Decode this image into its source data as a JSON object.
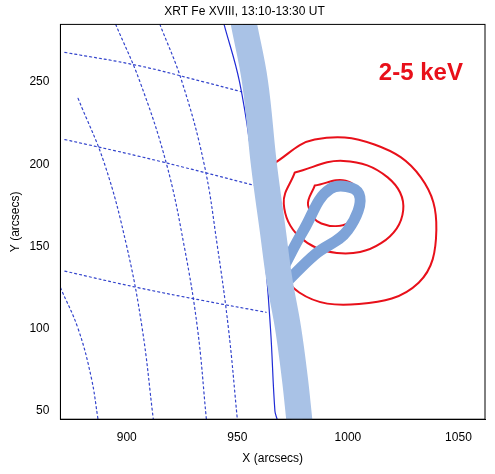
{
  "chart_data": {
    "type": "scatter",
    "title": "XRT Fe XVIII, 13:10-13:30 UT",
    "x_label": "X (arcsecs)",
    "y_label": "Y (arcsecs)",
    "xlim": [
      870,
      1062
    ],
    "ylim": [
      45,
      285
    ],
    "xticks": [
      900,
      950,
      1000,
      1050
    ],
    "yticks": [
      50,
      100,
      150,
      200,
      250
    ],
    "grid": false,
    "annotations": [
      {
        "text": "2-5 keV",
        "x": 1033,
        "y": 255,
        "color": "#e8101a"
      }
    ],
    "series": [
      {
        "type": "band",
        "color": "#a9c2e6",
        "line_style": "solid",
        "marker": "none",
        "values": [
          [
            953,
            285
          ],
          [
            958,
            250
          ],
          [
            962,
            200
          ],
          [
            966,
            160
          ],
          [
            969,
            130
          ],
          [
            973,
            100
          ],
          [
            976,
            70
          ],
          [
            978,
            45
          ]
        ]
      },
      {
        "type": "band",
        "color": "#1d4f9e",
        "line_style": "solid",
        "marker": "none",
        "values": [
          [
            955,
            285
          ],
          [
            960,
            250
          ],
          [
            964,
            200
          ],
          [
            967,
            160
          ],
          [
            969,
            130
          ],
          [
            972,
            100
          ],
          [
            975,
            70
          ],
          [
            977,
            45
          ]
        ]
      },
      {
        "type": "band",
        "color": "#7ea3d8",
        "line_style": "solid",
        "marker": "none",
        "values": [
          [
            970,
            135
          ],
          [
            980,
            160
          ],
          [
            992,
            185
          ],
          [
            1005,
            182
          ],
          [
            1000,
            160
          ],
          [
            985,
            145
          ],
          [
            972,
            128
          ]
        ]
      },
      {
        "type": "line",
        "color": "#1f2bd6",
        "line_style": "solid",
        "marker": "none",
        "values": [
          [
            944,
            285
          ],
          [
            951,
            250
          ],
          [
            957,
            200
          ],
          [
            962,
            150
          ],
          [
            965,
            100
          ],
          [
            967,
            50
          ],
          [
            968,
            45
          ]
        ]
      },
      {
        "type": "line",
        "color": "#3344cc",
        "line_style": "dotted",
        "marker": "none",
        "values": [
          [
            915,
            285
          ],
          [
            925,
            250
          ],
          [
            935,
            200
          ],
          [
            941,
            150
          ],
          [
            946,
            100
          ],
          [
            950,
            45
          ]
        ]
      },
      {
        "type": "line",
        "color": "#3344cc",
        "line_style": "dotted",
        "marker": "none",
        "values": [
          [
            895,
            285
          ],
          [
            906,
            250
          ],
          [
            918,
            200
          ],
          [
            926,
            150
          ],
          [
            932,
            100
          ],
          [
            936,
            45
          ]
        ]
      },
      {
        "type": "line",
        "color": "#3344cc",
        "line_style": "dotted",
        "marker": "none",
        "values": [
          [
            878,
            240
          ],
          [
            890,
            200
          ],
          [
            900,
            150
          ],
          [
            907,
            100
          ],
          [
            912,
            45
          ]
        ]
      },
      {
        "type": "line",
        "color": "#3344cc",
        "line_style": "dotted",
        "marker": "none",
        "values": [
          [
            870,
            125
          ],
          [
            878,
            100
          ],
          [
            884,
            70
          ],
          [
            887,
            45
          ]
        ]
      },
      {
        "type": "line",
        "color": "#3344cc",
        "line_style": "dotted",
        "marker": "none",
        "values": [
          [
            872,
            268
          ],
          [
            905,
            260
          ],
          [
            935,
            250
          ],
          [
            952,
            244
          ]
        ]
      },
      {
        "type": "line",
        "color": "#3344cc",
        "line_style": "dotted",
        "marker": "none",
        "values": [
          [
            872,
            215
          ],
          [
            905,
            205
          ],
          [
            935,
            195
          ],
          [
            958,
            187
          ]
        ]
      },
      {
        "type": "line",
        "color": "#3344cc",
        "line_style": "dotted",
        "marker": "none",
        "values": [
          [
            872,
            135
          ],
          [
            905,
            125
          ],
          [
            935,
            117
          ],
          [
            963,
            110
          ]
        ]
      },
      {
        "type": "line",
        "color": "#e8101a",
        "line_style": "solid",
        "marker": "none",
        "values": [
          [
            966,
            200
          ],
          [
            985,
            215
          ],
          [
            1012,
            212
          ],
          [
            1033,
            192
          ],
          [
            1040,
            160
          ],
          [
            1032,
            128
          ],
          [
            1005,
            115
          ],
          [
            978,
            122
          ],
          [
            966,
            150
          ],
          [
            963,
            180
          ],
          [
            966,
            200
          ]
        ]
      },
      {
        "type": "line",
        "color": "#e8101a",
        "line_style": "solid",
        "marker": "none",
        "values": [
          [
            976,
            195
          ],
          [
            998,
            202
          ],
          [
            1018,
            192
          ],
          [
            1025,
            172
          ],
          [
            1015,
            152
          ],
          [
            995,
            146
          ],
          [
            978,
            156
          ],
          [
            971,
            176
          ],
          [
            976,
            195
          ]
        ]
      },
      {
        "type": "line",
        "color": "#e8101a",
        "line_style": "solid",
        "marker": "none",
        "values": [
          [
            985,
            187
          ],
          [
            999,
            190
          ],
          [
            1006,
            180
          ],
          [
            1001,
            165
          ],
          [
            988,
            164
          ],
          [
            982,
            175
          ],
          [
            985,
            187
          ]
        ]
      }
    ]
  }
}
